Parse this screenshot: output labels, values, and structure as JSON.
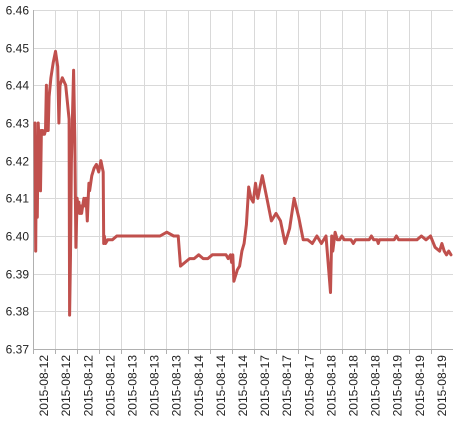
{
  "chart_data": {
    "type": "line",
    "title": "",
    "xlabel": "",
    "ylabel": "",
    "ylim": [
      6.37,
      6.46
    ],
    "y_ticks": [
      6.37,
      6.38,
      6.39,
      6.4,
      6.41,
      6.42,
      6.43,
      6.44,
      6.45,
      6.46
    ],
    "y_tick_labels": [
      "6.37",
      "6.38",
      "6.39",
      "6.40",
      "6.41",
      "6.42",
      "6.43",
      "6.44",
      "6.45",
      "6.46"
    ],
    "x_tick_labels": [
      "2015-08-12",
      "2015-08-12",
      "2015-08-12",
      "2015-08-12",
      "2015-08-13",
      "2015-08-13",
      "2015-08-13",
      "2015-08-14",
      "2015-08-14",
      "2015-08-14",
      "2015-08-17",
      "2015-08-17",
      "2015-08-17",
      "2015-08-18",
      "2015-08-18",
      "2015-08-18",
      "2015-08-19",
      "2015-08-19",
      "2015-08-19"
    ],
    "grid": true,
    "colors": {
      "series": "#c0504d",
      "grid": "#d9d9d9",
      "axis": "#b0b0b0"
    },
    "series": [
      {
        "x": [
          0,
          0.03,
          0.06,
          0.09,
          0.1,
          0.14,
          0.18,
          0.2,
          0.24,
          0.28,
          0.3,
          0.34,
          0.38,
          0.42,
          0.46,
          0.5,
          0.52,
          0.55,
          0.58,
          0.62,
          0.7,
          0.8,
          0.9,
          1.0,
          1.05,
          1.1,
          1.2,
          1.35,
          1.5,
          1.52,
          1.56,
          1.6,
          1.64,
          1.7,
          1.75,
          1.8,
          1.85,
          1.9,
          1.93,
          1.96,
          2.0,
          2.05,
          2.1,
          2.15,
          2.2,
          2.25,
          2.3,
          2.34,
          2.37,
          2.4,
          2.5,
          2.6,
          2.7,
          2.8,
          2.9,
          3.0,
          3.02,
          3.05,
          3.1,
          3.2,
          3.4,
          3.6,
          3.8,
          4.0,
          4.3,
          4.6,
          4.9,
          5.2,
          5.5,
          5.8,
          6.1,
          6.3,
          6.4,
          6.6,
          6.8,
          7.0,
          7.2,
          7.4,
          7.6,
          7.8,
          8.0,
          8.1,
          8.2,
          8.3,
          8.4,
          8.5,
          8.6,
          8.65,
          8.7,
          8.75,
          8.8,
          8.85,
          8.9,
          9.0,
          9.1,
          9.2,
          9.3,
          9.4,
          9.5,
          9.6,
          9.7,
          9.8,
          9.9,
          10.0,
          10.2,
          10.4,
          10.6,
          10.8,
          11.0,
          11.2,
          11.4,
          11.6,
          11.8,
          12.0,
          12.2,
          12.4,
          12.6,
          12.8,
          13.0,
          13.05,
          13.1,
          13.2,
          13.3,
          13.4,
          13.5,
          13.6,
          13.7,
          13.8,
          13.9,
          14.0,
          14.1,
          14.2,
          14.3,
          14.4,
          14.5,
          14.6,
          14.7,
          14.8,
          14.9,
          15.0,
          15.05,
          15.1,
          15.15,
          15.2,
          15.3,
          15.4,
          15.5,
          15.6,
          15.7,
          15.8,
          15.9,
          16.0,
          16.2,
          16.4,
          16.6,
          16.8,
          17.0,
          17.2,
          17.4,
          17.6,
          17.8,
          17.9,
          18.0,
          18.1,
          18.2,
          18.3
        ],
        "values": [
          6.43,
          6.396,
          6.425,
          6.41,
          6.405,
          6.43,
          6.425,
          6.428,
          6.412,
          6.428,
          6.427,
          6.428,
          6.427,
          6.427,
          6.428,
          6.44,
          6.428,
          6.431,
          6.428,
          6.437,
          6.442,
          6.446,
          6.449,
          6.445,
          6.43,
          6.44,
          6.442,
          6.44,
          6.431,
          6.379,
          6.395,
          6.42,
          6.43,
          6.444,
          6.426,
          6.397,
          6.41,
          6.407,
          6.409,
          6.406,
          6.408,
          6.406,
          6.408,
          6.41,
          6.408,
          6.41,
          6.404,
          6.41,
          6.414,
          6.412,
          6.416,
          6.418,
          6.419,
          6.417,
          6.42,
          6.417,
          6.398,
          6.4,
          6.398,
          6.399,
          6.399,
          6.4,
          6.4,
          6.4,
          6.4,
          6.4,
          6.4,
          6.4,
          6.4,
          6.401,
          6.4,
          6.4,
          6.392,
          6.393,
          6.394,
          6.394,
          6.395,
          6.394,
          6.394,
          6.395,
          6.395,
          6.395,
          6.395,
          6.395,
          6.395,
          6.394,
          6.395,
          6.393,
          6.395,
          6.388,
          6.389,
          6.39,
          6.391,
          6.392,
          6.396,
          6.398,
          6.403,
          6.413,
          6.41,
          6.409,
          6.414,
          6.41,
          6.413,
          6.416,
          6.41,
          6.404,
          6.406,
          6.404,
          6.398,
          6.402,
          6.41,
          6.405,
          6.399,
          6.399,
          6.398,
          6.4,
          6.398,
          6.4,
          6.385,
          6.4,
          6.396,
          6.401,
          6.399,
          6.399,
          6.4,
          6.399,
          6.399,
          6.399,
          6.399,
          6.398,
          6.399,
          6.399,
          6.399,
          6.399,
          6.399,
          6.399,
          6.399,
          6.4,
          6.399,
          6.399,
          6.399,
          6.398,
          6.399,
          6.399,
          6.399,
          6.399,
          6.399,
          6.399,
          6.399,
          6.399,
          6.4,
          6.399,
          6.399,
          6.399,
          6.399,
          6.399,
          6.4,
          6.399,
          6.4,
          6.397,
          6.396,
          6.398,
          6.396,
          6.395,
          6.396,
          6.395
        ]
      }
    ]
  }
}
